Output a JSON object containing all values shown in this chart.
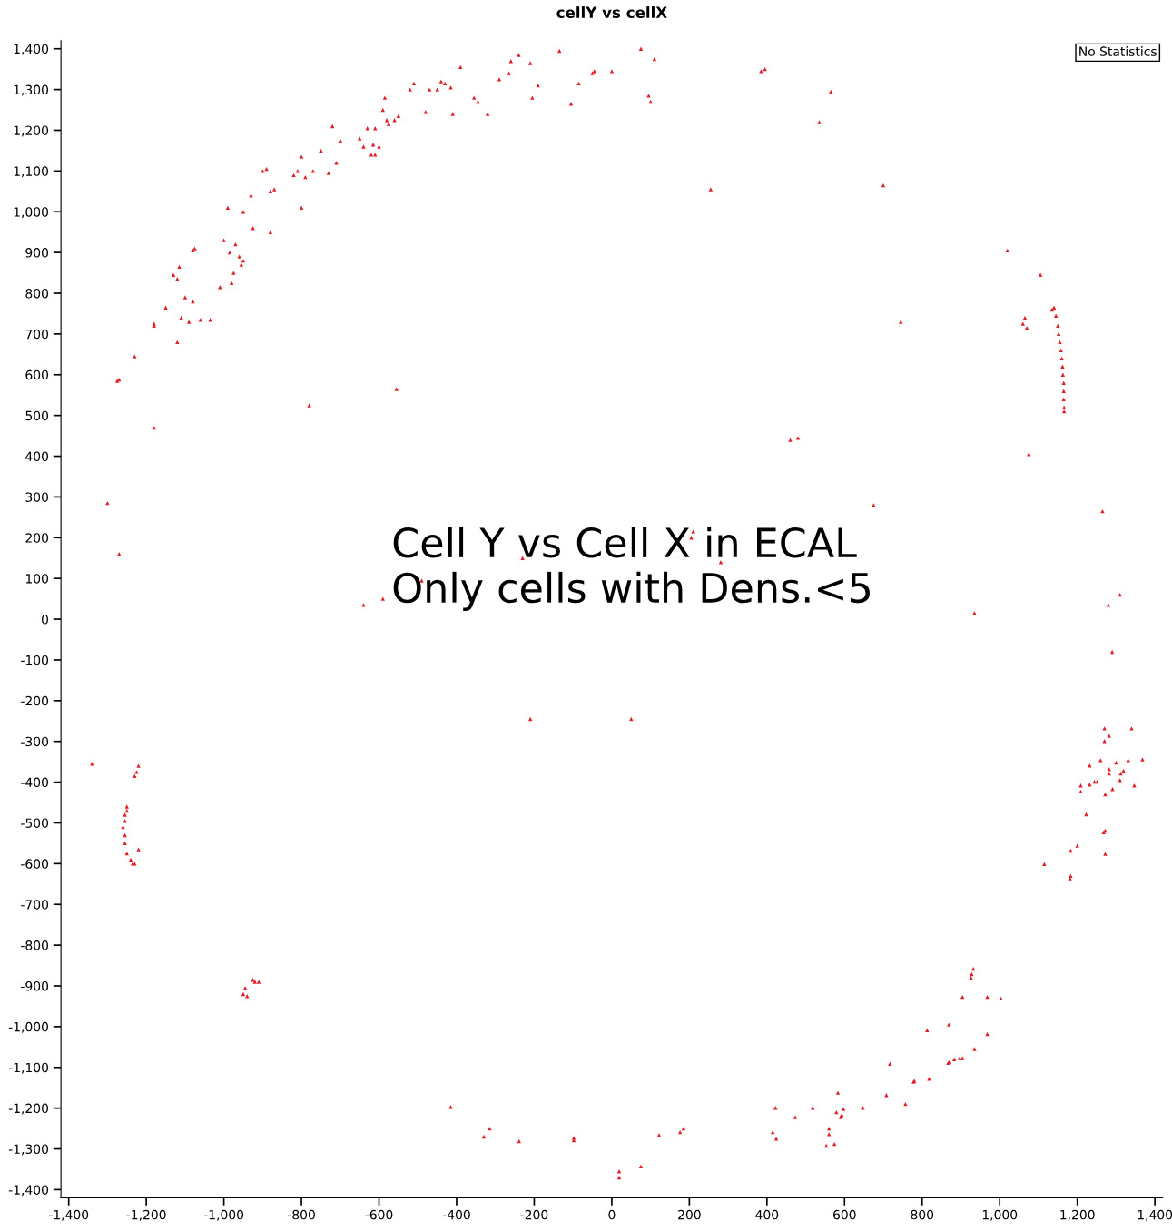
{
  "chart_data": {
    "type": "scatter",
    "title": "cellY vs cellX",
    "annotations": [
      "Cell Y vs Cell X in ECAL\nOnly cells with Dens.<5",
      "No Statistics"
    ],
    "xlim": [
      -1420,
      1420
    ],
    "ylim": [
      -1420,
      1420
    ],
    "xticks": [
      {
        "value": -1400,
        "label": "-1,400"
      },
      {
        "value": -1200,
        "label": "-1,200"
      },
      {
        "value": -1000,
        "label": "-1,000"
      },
      -800,
      -600,
      -400,
      -200,
      0,
      200,
      400,
      600,
      800,
      {
        "value": 1000,
        "label": "1,000"
      },
      {
        "value": 1200,
        "label": "1,200"
      },
      {
        "value": 1400,
        "label": "1,400"
      }
    ],
    "yticks": [
      {
        "value": -1400,
        "label": "-1,400"
      },
      {
        "value": -1300,
        "label": "-1,300"
      },
      {
        "value": -1200,
        "label": "-1,200"
      },
      {
        "value": -1100,
        "label": "-1,100"
      },
      {
        "value": -1000,
        "label": "-1,000"
      },
      -900,
      -800,
      -700,
      -600,
      -500,
      -400,
      -300,
      -200,
      -100,
      0,
      100,
      200,
      300,
      400,
      500,
      600,
      700,
      800,
      900,
      {
        "value": 1000,
        "label": "1,000"
      },
      {
        "value": 1100,
        "label": "1,100"
      },
      {
        "value": 1200,
        "label": "1,200"
      },
      {
        "value": 1300,
        "label": "1,300"
      },
      {
        "value": 1400,
        "label": "1,400"
      }
    ],
    "grid": false,
    "legend": false,
    "marker": "triangle",
    "series": [
      {
        "color": "#e0202a",
        "x": [
          -1300,
          -1270,
          -1275,
          -1270,
          -1230,
          -1180,
          -1180,
          -1180,
          -1150,
          -1130,
          -1120,
          -1115,
          -1110,
          -1120,
          -1100,
          -1090,
          -1080,
          -1080,
          -1075,
          -1060,
          -1035,
          -1010,
          -1000,
          -990,
          -985,
          -980,
          -975,
          -970,
          -960,
          -955,
          -950,
          -950,
          -930,
          -925,
          -900,
          -890,
          -880,
          -880,
          -870,
          -820,
          -810,
          -800,
          -800,
          -790,
          -780,
          -770,
          -750,
          -730,
          -720,
          -710,
          -700,
          -650,
          -640,
          -630,
          -620,
          -615,
          -610,
          -610,
          -600,
          -590,
          -585,
          -580,
          -575,
          -560,
          -555,
          -550,
          -520,
          -510,
          -490,
          -480,
          -470,
          -450,
          -440,
          -430,
          -415,
          -410,
          -390,
          -355,
          -345,
          -320,
          -290,
          -265,
          -260,
          -240,
          -230,
          -210,
          -205,
          -190,
          -135,
          -105,
          -85,
          -50,
          -45,
          0,
          75,
          95,
          100,
          110,
          -640,
          -590,
          -210,
          50,
          205,
          210,
          281,
          385,
          395,
          535,
          565,
          255,
          700,
          1020,
          1105,
          745,
          460,
          480,
          675,
          1065,
          1060,
          1070,
          1075,
          1135,
          1140,
          1145,
          1150,
          1152,
          1155,
          1158,
          1160,
          1162,
          1163,
          1165,
          1165,
          1165,
          1166,
          1166,
          935,
          1265,
          1280,
          1310,
          1290,
          1270,
          1340,
          1282,
          1270,
          1260,
          1232,
          1300,
          1331,
          1368,
          1282,
          1282,
          1312,
          1319,
          1310,
          1209,
          1209,
          1232,
          1244,
          1251,
          1291,
          1272,
          1347,
          1223,
          1272,
          1268,
          1200,
          1183,
          1272,
          1115,
          1183,
          1181,
          -1340,
          -1220,
          -1225,
          -1230,
          -1250,
          -1250,
          -1255,
          -1255,
          -1260,
          -1255,
          -1255,
          -1250,
          -1240,
          -1235,
          -1230,
          -1220,
          -945,
          -950,
          -940,
          -925,
          -920,
          -910,
          -239,
          -98,
          -98,
          19,
          19,
          75,
          122,
          176,
          185,
          415,
          422,
          424,
          473,
          518,
          560,
          560,
          553,
          574,
          579,
          583,
          590,
          593,
          597,
          647,
          708,
          717,
          757,
          778,
          780,
          818,
          813,
          869,
          867,
          871,
          883,
          897,
          904,
          904,
          935,
          926,
          928,
          932,
          968,
          968,
          1003,
          -415,
          -330,
          -315
        ],
        "values": [
          285,
          160,
          585,
          588,
          645,
          470,
          720,
          725,
          765,
          845,
          835,
          865,
          740,
          680,
          790,
          730,
          780,
          905,
          910,
          735,
          735,
          815,
          930,
          1010,
          900,
          825,
          850,
          920,
          890,
          870,
          880,
          1000,
          1040,
          960,
          1100,
          1105,
          1050,
          950,
          1055,
          1090,
          1100,
          1135,
          1010,
          1085,
          525,
          1100,
          1150,
          1095,
          1210,
          1120,
          1175,
          1180,
          1160,
          1205,
          1140,
          1165,
          1205,
          1140,
          1160,
          1250,
          1280,
          1225,
          1215,
          1225,
          565,
          1235,
          1300,
          1315,
          95,
          1245,
          1300,
          1300,
          1320,
          1315,
          1305,
          1240,
          1355,
          1280,
          1270,
          1240,
          1325,
          1340,
          1370,
          1385,
          150,
          1365,
          1280,
          1310,
          1395,
          1265,
          1315,
          1340,
          1345,
          1345,
          1400,
          1285,
          1270,
          1375,
          35,
          50,
          -245,
          -245,
          200,
          215,
          140,
          1345,
          1350,
          1220,
          1295,
          1055,
          1065,
          905,
          845,
          730,
          440,
          445,
          280,
          740,
          725,
          715,
          405,
          760,
          765,
          745,
          720,
          700,
          680,
          660,
          640,
          620,
          600,
          580,
          560,
          540,
          520,
          510,
          15,
          265,
          35,
          60,
          -80,
          -268,
          -268,
          -286,
          -299,
          -346,
          -359,
          -352,
          -346,
          -344,
          -368,
          -379,
          -379,
          -372,
          -395,
          -408,
          -423,
          -406,
          -399,
          -399,
          -417,
          -430,
          -408,
          -479,
          -519,
          -523,
          -556,
          -568,
          -576,
          -601,
          -630,
          -636,
          -355,
          -360,
          -375,
          -385,
          -460,
          -470,
          -480,
          -495,
          -510,
          -530,
          -550,
          -575,
          -590,
          -600,
          -600,
          -565,
          -905,
          -920,
          -925,
          -885,
          -890,
          -890,
          -1281,
          -1273,
          -1279,
          -1355,
          -1370,
          -1343,
          -1266,
          -1259,
          -1250,
          -1259,
          -1199,
          -1275,
          -1222,
          -1199,
          -1250,
          -1264,
          -1292,
          -1288,
          -1210,
          -1162,
          -1222,
          -1217,
          -1202,
          -1199,
          -1168,
          -1091,
          -1190,
          -1135,
          -1133,
          -1128,
          -1009,
          -995,
          -1089,
          -1086,
          -1080,
          -1077,
          -1077,
          -927,
          -1055,
          -880,
          -871,
          -858,
          -927,
          -1018,
          -931,
          -1197,
          -1270,
          -1250
        ]
      }
    ]
  }
}
